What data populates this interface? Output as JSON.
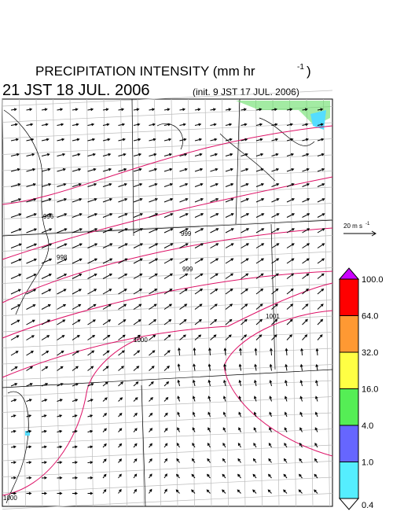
{
  "header": {
    "title": "PRECIPITATION INTENSITY (mm hr",
    "title_exponent": "-1",
    "title_close": ")",
    "valid_time": "21 JST 18 JUL. 2006",
    "init_time": "(init. 9 JST 17 JUL. 2006)"
  },
  "vector_legend": {
    "label": "20 m s",
    "exponent": "-1"
  },
  "colorbar": {
    "top_color": "#cc00ff",
    "bottom_color": "#ffffff",
    "colors": [
      "#ff0000",
      "#ff9933",
      "#ffff44",
      "#55ee55",
      "#6666ff",
      "#55eeff"
    ],
    "labels": [
      "100.0",
      "64.0",
      "32.0",
      "16.0",
      "4.0",
      "1.0",
      "0.4"
    ]
  },
  "contours": [
    {
      "label": "996"
    },
    {
      "label": "998"
    },
    {
      "label": "999"
    },
    {
      "label": "999"
    },
    {
      "label": "1000"
    },
    {
      "label": "1001"
    },
    {
      "label": "1000"
    }
  ]
}
